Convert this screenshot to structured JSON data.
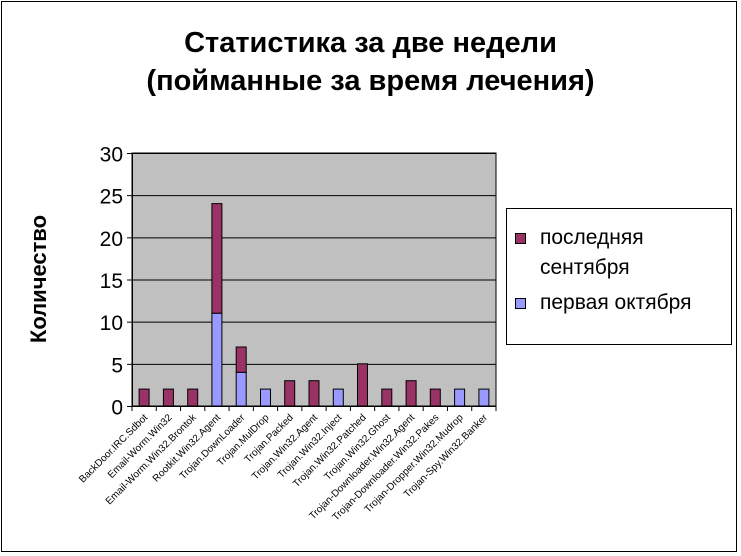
{
  "chart_data": {
    "type": "bar",
    "stacked": true,
    "title": [
      "Статистика за две недели",
      "(пойманные за время лечения)"
    ],
    "ylabel": "Количество",
    "xlabel": "",
    "ylim": [
      0,
      30
    ],
    "yticks": [
      0,
      5,
      10,
      15,
      20,
      25,
      30
    ],
    "grid": true,
    "legend_position": "right",
    "categories": [
      "BackDoor.IRC.Sdbot",
      "Email-Worm.Win32",
      "Email-Worm.Win32.Brontok",
      "Rootkit.Win32.Agent",
      "Trojan.DownLoader",
      "Trojan.MulDrop",
      "Trojan.Packed",
      "Trojan.Win32.Agent",
      "Trojan.Win32.Inject",
      "Trojan.Win32.Patched",
      "Trojan.Win32.Ghost",
      "Trojan-Downloader.Win32.Agent",
      "Trojan-Downloader.Win32.Pakes",
      "Trojan-Dropper.Win32.Mudrop",
      "Trojan-Spy.Win32.Banker"
    ],
    "series": [
      {
        "name": "первая октября",
        "color": "#9999ff",
        "values": [
          0,
          0,
          0,
          11,
          4,
          2,
          0,
          0,
          2,
          0,
          0,
          0,
          0,
          2,
          2
        ]
      },
      {
        "name": "последняя сентября",
        "color": "#993366",
        "values": [
          2,
          2,
          2,
          13,
          3,
          0,
          3,
          3,
          0,
          5,
          2,
          3,
          2,
          0,
          0
        ]
      }
    ],
    "legend_order": [
      "последняя сентября",
      "первая октября"
    ],
    "plot_background": "#c0c0c0"
  }
}
